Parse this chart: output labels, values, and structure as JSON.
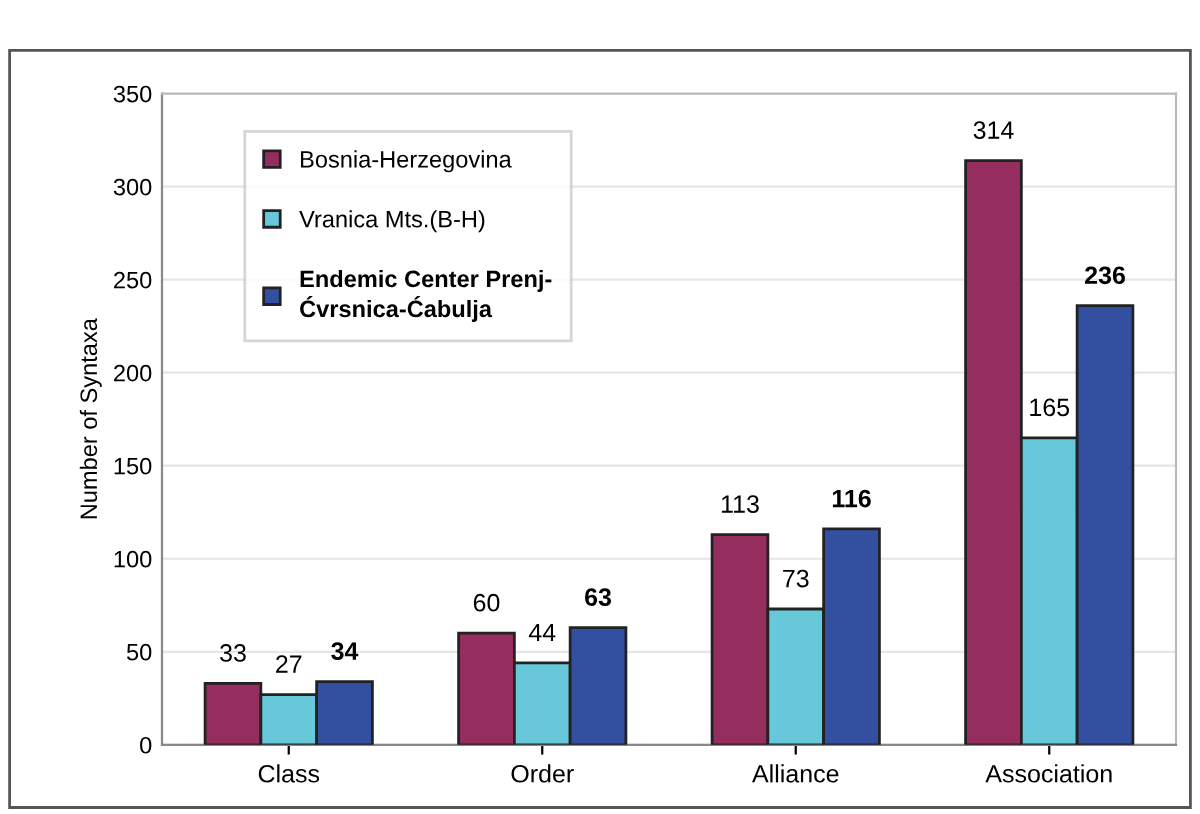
{
  "chart_data": {
    "type": "bar",
    "ylabel": "Number of Syntaxa",
    "categories": [
      "Class",
      "Order",
      "Alliance",
      "Association"
    ],
    "series": [
      {
        "name": "Bosnia-Herzegovina",
        "color": "#952e5e",
        "values": [
          33,
          60,
          113,
          314
        ]
      },
      {
        "name": "Vranica Mts.(B-H)",
        "color": "#66c8d8",
        "values": [
          27,
          44,
          73,
          165
        ]
      },
      {
        "name": "Endemic Center Prenj-\nĆvrsnica-Ćabulja",
        "color": "#3350a0",
        "values": [
          34,
          63,
          116,
          236
        ]
      }
    ],
    "ylim": [
      0,
      350
    ],
    "yticks": [
      0,
      50,
      100,
      150,
      200,
      250,
      300,
      350
    ],
    "grid": "y",
    "legend": "top left",
    "data_labels": true
  }
}
